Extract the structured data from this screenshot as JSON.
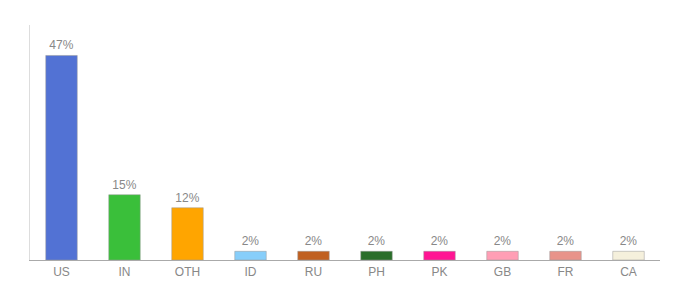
{
  "chart_data": {
    "type": "bar",
    "categories": [
      "US",
      "IN",
      "OTH",
      "ID",
      "RU",
      "PH",
      "PK",
      "GB",
      "FR",
      "CA"
    ],
    "values": [
      47,
      15,
      12,
      2,
      2,
      2,
      2,
      2,
      2,
      2
    ],
    "value_labels": [
      "47%",
      "15%",
      "12%",
      "2%",
      "2%",
      "2%",
      "2%",
      "2%",
      "2%",
      "2%"
    ],
    "colors": [
      "#5272d4",
      "#3abf3a",
      "#ffa500",
      "#87cefa",
      "#c06020",
      "#2a6e2a",
      "#ff1493",
      "#ff9eb5",
      "#e8938a",
      "#f5f0dc"
    ],
    "ylim": [
      0,
      54
    ],
    "data_labels": true,
    "tick_labels": "x",
    "grid": false
  }
}
